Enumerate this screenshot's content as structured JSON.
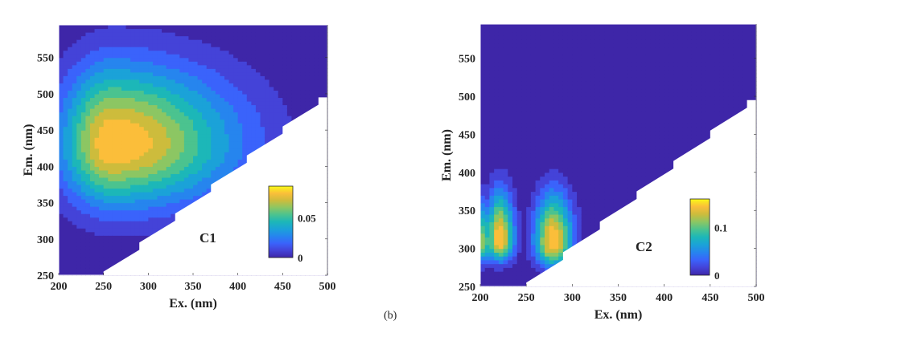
{
  "caption": "(b)",
  "colormap": [
    "#3e26a8",
    "#4443d8",
    "#3a63fb",
    "#2685ee",
    "#1ba2d8",
    "#1cb7b8",
    "#4bc38f",
    "#8cc663",
    "#cdbc3c",
    "#fbbe3a",
    "#f9fb15"
  ],
  "chart_data": [
    {
      "type": "heatmap",
      "subtype": "filled-contour",
      "label": "C1",
      "xlabel": "Ex. (nm)",
      "ylabel": "Em. (nm)",
      "xlim": [
        200,
        500
      ],
      "ylim": [
        250,
        595
      ],
      "xticks": [
        200,
        250,
        300,
        350,
        400,
        450,
        500
      ],
      "yticks": [
        250,
        300,
        350,
        400,
        450,
        500,
        550
      ],
      "colorbar": {
        "min": 0,
        "max": 0.09,
        "ticks": [
          0,
          0.05
        ],
        "tick_labels": [
          "0",
          "0.05"
        ]
      },
      "levels": 10,
      "peaks": [
        {
          "ex": 260,
          "em": 432,
          "value": 0.09,
          "sx_left": 40,
          "sx_right": 95,
          "sy_up": 75,
          "sy_down": 60
        }
      ]
    },
    {
      "type": "heatmap",
      "subtype": "filled-contour",
      "label": "C2",
      "xlabel": "Ex. (nm)",
      "ylabel": "Em. (nm)",
      "xlim": [
        200,
        500
      ],
      "ylim": [
        250,
        595
      ],
      "xticks": [
        200,
        250,
        300,
        350,
        400,
        450,
        500
      ],
      "yticks": [
        250,
        300,
        350,
        400,
        450,
        500,
        550
      ],
      "colorbar": {
        "min": 0,
        "max": 0.16,
        "ticks": [
          0,
          0.1
        ],
        "tick_labels": [
          "0",
          "0.1"
        ]
      },
      "levels": 10,
      "peaks": [
        {
          "ex": 200,
          "em": 308,
          "value": 0.12,
          "sx_left": 12,
          "sx_right": 12,
          "sy_up": 38,
          "sy_down": 18
        },
        {
          "ex": 221,
          "em": 310,
          "value": 0.16,
          "sx_left": 10,
          "sx_right": 11,
          "sy_up": 45,
          "sy_down": 18
        },
        {
          "ex": 279,
          "em": 308,
          "value": 0.16,
          "sx_left": 14,
          "sx_right": 15,
          "sy_up": 45,
          "sy_down": 22
        }
      ]
    }
  ]
}
